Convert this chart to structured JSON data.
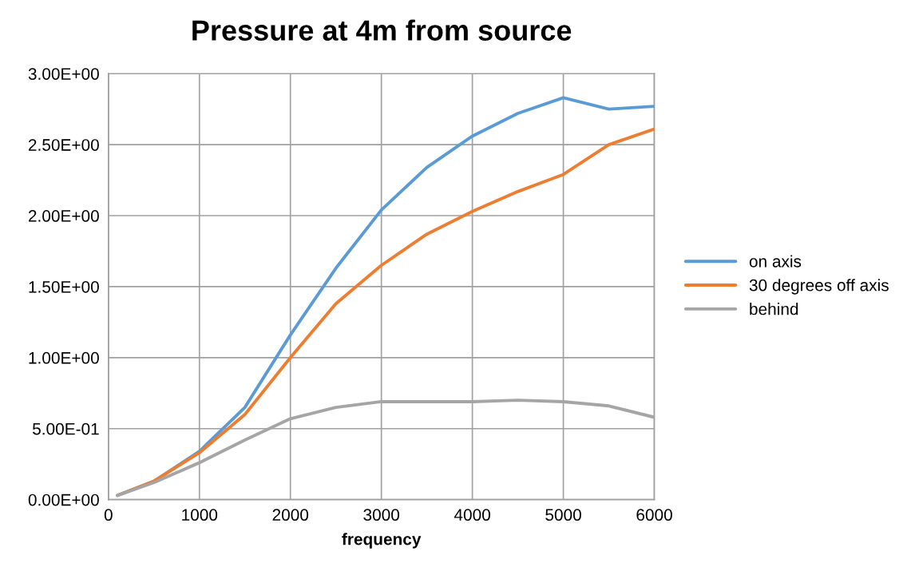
{
  "chart_data": {
    "type": "line",
    "title": "Pressure at 4m from source",
    "xlabel": "frequency",
    "x": [
      100,
      500,
      1000,
      1500,
      2000,
      2500,
      3000,
      3500,
      4000,
      4500,
      5000,
      5500,
      6000
    ],
    "series": [
      {
        "name": "on axis",
        "color": "#5b9bd5",
        "values": [
          0.03,
          0.13,
          0.34,
          0.65,
          1.16,
          1.63,
          2.04,
          2.34,
          2.56,
          2.72,
          2.83,
          2.75,
          2.77
        ]
      },
      {
        "name": "30 degrees off axis",
        "color": "#ed7d31",
        "values": [
          0.03,
          0.13,
          0.33,
          0.6,
          1.0,
          1.38,
          1.65,
          1.87,
          2.03,
          2.17,
          2.29,
          2.5,
          2.61
        ]
      },
      {
        "name": "behind",
        "color": "#a5a5a5",
        "values": [
          0.03,
          0.12,
          0.26,
          0.42,
          0.57,
          0.65,
          0.69,
          0.69,
          0.69,
          0.7,
          0.69,
          0.66,
          0.58
        ]
      }
    ],
    "xlim": [
      0,
      6000
    ],
    "xticks": [
      0,
      1000,
      2000,
      3000,
      4000,
      5000,
      6000
    ],
    "ylim": [
      0,
      3
    ],
    "yticks": [
      {
        "value": 0,
        "label": "0.00E+00"
      },
      {
        "value": 0.5,
        "label": "5.00E-01"
      },
      {
        "value": 1,
        "label": "1.00E+00"
      },
      {
        "value": 1.5,
        "label": "1.50E+00"
      },
      {
        "value": 2,
        "label": "2.00E+00"
      },
      {
        "value": 2.5,
        "label": "2.50E+00"
      },
      {
        "value": 3,
        "label": "3.00E+00"
      }
    ],
    "grid": true,
    "legend": "right",
    "marker": "none",
    "line_style": "solid"
  }
}
